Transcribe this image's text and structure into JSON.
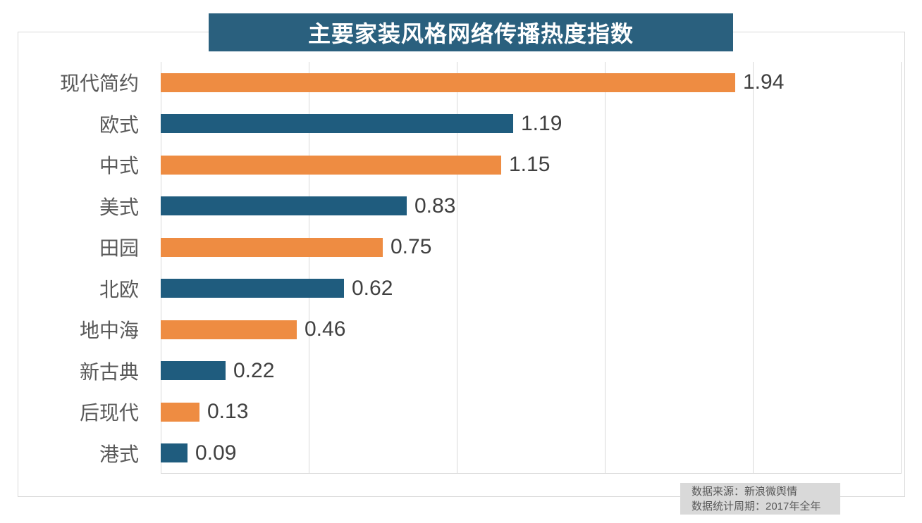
{
  "title": "主要家装风格网络传播热度指数",
  "chart_data": {
    "type": "bar",
    "orientation": "horizontal",
    "title": "主要家装风格网络传播热度指数",
    "categories": [
      "现代简约",
      "欧式",
      "中式",
      "美式",
      "田园",
      "北欧",
      "地中海",
      "新古典",
      "后现代",
      "港式"
    ],
    "values": [
      1.94,
      1.19,
      1.15,
      0.83,
      0.75,
      0.62,
      0.46,
      0.22,
      0.13,
      0.09
    ],
    "value_labels": [
      "1.94",
      "1.19",
      "1.15",
      "0.83",
      "0.75",
      "0.62",
      "0.46",
      "0.22",
      "0.13",
      "0.09"
    ],
    "xlabel": "",
    "ylabel": "",
    "xlim": [
      0,
      2.5
    ],
    "grid_step": 0.5,
    "grid": true,
    "legend": "none",
    "bar_colors_alternating": [
      "#ee8c42",
      "#1f5c7e"
    ]
  },
  "footer": {
    "source_line": "数据来源：新浪微舆情",
    "period_line": "数据统计周期：2017年全年"
  },
  "colors": {
    "banner_bg": "#2a607e",
    "banner_text": "#ffffff",
    "orange_bar": "#ee8c42",
    "teal_bar": "#1f5c7e",
    "gridline": "#d9d9d9",
    "border": "#d9d9d9",
    "category_label_text": "#595959",
    "value_label_text": "#404040",
    "footer_bg": "#d9d9d9",
    "footer_text": "#595959"
  }
}
